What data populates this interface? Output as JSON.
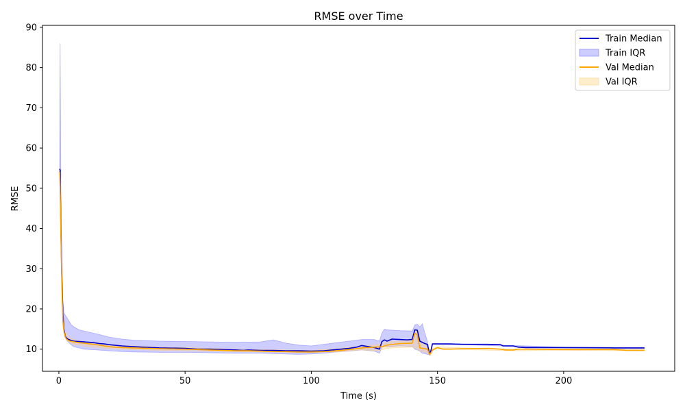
{
  "chart_data": {
    "type": "line",
    "title": "RMSE over Time",
    "xlabel": "Time (s)",
    "ylabel": "RMSE",
    "xlim": [
      -6.5,
      244
    ],
    "ylim": [
      4.5,
      90.5
    ],
    "xticks": [
      0,
      50,
      100,
      150,
      200
    ],
    "yticks": [
      10,
      20,
      30,
      40,
      50,
      60,
      70,
      80,
      90
    ],
    "grid": false,
    "legend_position": "top-right",
    "series": [
      {
        "name": "Train Median",
        "kind": "line",
        "color": "#0000cd",
        "x": [
          0.3,
          0.5,
          0.8,
          1.2,
          1.6,
          2.0,
          2.5,
          3.0,
          3.5,
          4,
          5,
          6,
          8,
          10,
          12,
          14,
          16,
          18,
          20,
          25,
          30,
          40,
          50,
          55,
          60,
          65,
          70,
          73,
          75,
          80,
          85,
          90,
          95,
          100,
          105,
          110,
          115,
          118,
          120,
          125,
          127,
          128,
          129,
          130,
          132,
          135,
          138,
          140,
          141,
          142,
          143,
          145,
          146,
          147,
          148,
          150,
          155,
          160,
          170,
          175,
          176,
          180,
          182,
          185,
          200,
          220,
          232
        ],
        "values": [
          54.8,
          54.5,
          40.0,
          27.0,
          19.0,
          15.0,
          13.2,
          12.8,
          12.5,
          12.4,
          12.1,
          12.0,
          11.9,
          11.8,
          11.7,
          11.6,
          11.4,
          11.3,
          11.1,
          10.8,
          10.6,
          10.3,
          10.2,
          10.0,
          10.0,
          9.9,
          9.8,
          9.7,
          9.8,
          9.7,
          9.7,
          9.6,
          9.6,
          9.5,
          9.6,
          9.9,
          10.2,
          10.5,
          10.9,
          10.4,
          10.0,
          11.9,
          12.3,
          12.0,
          12.5,
          12.4,
          12.3,
          12.4,
          14.8,
          14.7,
          12.0,
          11.4,
          11.2,
          8.6,
          11.3,
          11.3,
          11.3,
          11.2,
          11.2,
          11.1,
          10.8,
          10.8,
          10.5,
          10.4,
          10.4,
          10.3,
          10.3
        ]
      },
      {
        "name": "Train IQR",
        "kind": "band",
        "color": "#7b7bff",
        "x": [
          0.3,
          0.5,
          0.8,
          1.2,
          1.6,
          2,
          3,
          4,
          5,
          6,
          8,
          10,
          15,
          20,
          25,
          30,
          40,
          50,
          60,
          70,
          80,
          85,
          90,
          95,
          100,
          105,
          110,
          115,
          120,
          125,
          127,
          128,
          129,
          130,
          135,
          140,
          141,
          142,
          143,
          144,
          145,
          146,
          147,
          148,
          150,
          160,
          180,
          200,
          232
        ],
        "lower": [
          52.0,
          50.0,
          36.0,
          24.0,
          17.0,
          14.0,
          12.3,
          11.6,
          11.0,
          10.6,
          10.3,
          10.0,
          9.8,
          9.6,
          9.4,
          9.3,
          9.2,
          9.2,
          9.1,
          9.0,
          9.0,
          8.9,
          8.8,
          8.7,
          8.8,
          9.0,
          9.3,
          9.5,
          9.8,
          9.5,
          9.0,
          10.5,
          10.8,
          10.6,
          10.8,
          10.7,
          10.0,
          9.8,
          9.5,
          9.0,
          8.9,
          8.7,
          8.6,
          11.2,
          11.2,
          11.1,
          10.7,
          10.3,
          10.2
        ],
        "upper": [
          57.0,
          86.0,
          48.0,
          32.0,
          22.0,
          19.0,
          18.0,
          17.0,
          16.0,
          15.5,
          14.8,
          14.5,
          13.8,
          13.0,
          12.5,
          12.2,
          12.0,
          11.9,
          11.8,
          11.7,
          11.8,
          12.3,
          11.5,
          11.0,
          10.8,
          11.2,
          11.6,
          12.0,
          12.4,
          12.4,
          12.0,
          14.0,
          15.0,
          14.8,
          14.6,
          14.5,
          16.0,
          16.2,
          15.5,
          16.3,
          14.0,
          12.0,
          8.6,
          11.4,
          11.4,
          11.3,
          10.9,
          10.5,
          10.4
        ]
      },
      {
        "name": "Val Median",
        "kind": "line",
        "color": "#ffa500",
        "x": [
          0.3,
          0.5,
          0.8,
          1.2,
          1.6,
          2.0,
          2.5,
          3.0,
          3.5,
          4,
          5,
          6,
          8,
          10,
          12,
          14,
          16,
          18,
          20,
          25,
          30,
          40,
          50,
          55,
          60,
          65,
          70,
          75,
          80,
          85,
          90,
          95,
          100,
          105,
          110,
          115,
          120,
          125,
          128,
          130,
          135,
          140,
          141,
          142,
          143,
          145,
          146,
          147,
          148,
          150,
          152,
          155,
          160,
          170,
          175,
          177,
          180,
          182,
          185,
          200,
          220,
          225,
          232
        ],
        "values": [
          54.0,
          50.0,
          38.0,
          25.0,
          17.0,
          14.5,
          13.0,
          12.5,
          12.3,
          12.1,
          11.9,
          11.8,
          11.6,
          11.5,
          11.3,
          11.2,
          11.0,
          10.8,
          10.6,
          10.4,
          10.3,
          10.1,
          10.0,
          9.9,
          9.8,
          9.7,
          9.6,
          9.6,
          9.5,
          9.4,
          9.4,
          9.3,
          9.3,
          9.4,
          9.6,
          9.9,
          10.3,
          10.5,
          10.6,
          11.0,
          11.4,
          11.5,
          14.0,
          13.5,
          10.3,
          10.1,
          10.0,
          8.6,
          9.8,
          10.4,
          10.0,
          10.0,
          10.1,
          10.2,
          10.0,
          9.8,
          9.8,
          10.0,
          10.0,
          9.9,
          9.9,
          9.7,
          9.7
        ]
      },
      {
        "name": "Val IQR",
        "kind": "band",
        "color": "#ffd27f",
        "x": [
          0.3,
          0.5,
          0.8,
          1.2,
          1.6,
          2,
          3,
          4,
          5,
          6,
          8,
          10,
          15,
          20,
          25,
          30,
          40,
          50,
          60,
          70,
          80,
          90,
          100,
          110,
          120,
          125,
          128,
          130,
          135,
          140,
          141,
          142,
          143,
          145,
          146,
          147,
          148,
          150,
          160,
          180,
          200,
          232
        ],
        "lower": [
          53.0,
          48.0,
          36.0,
          23.0,
          16.0,
          13.8,
          12.3,
          11.8,
          11.4,
          11.2,
          11.0,
          10.8,
          10.4,
          10.2,
          10.0,
          9.9,
          9.7,
          9.6,
          9.5,
          9.4,
          9.3,
          9.2,
          9.2,
          9.3,
          9.8,
          9.6,
          9.8,
          10.2,
          10.4,
          10.5,
          10.2,
          10.0,
          9.5,
          9.3,
          9.0,
          8.6,
          9.6,
          10.2,
          9.9,
          9.6,
          9.7,
          9.6
        ],
        "upper": [
          55.0,
          52.0,
          40.0,
          27.0,
          18.0,
          15.2,
          13.7,
          13.0,
          12.6,
          12.3,
          12.1,
          11.9,
          11.6,
          11.2,
          10.9,
          10.8,
          10.5,
          10.4,
          10.2,
          10.0,
          9.9,
          9.8,
          9.7,
          10.1,
          10.8,
          11.0,
          11.4,
          11.8,
          12.0,
          12.1,
          15.0,
          14.5,
          12.5,
          11.0,
          10.5,
          8.6,
          10.1,
          10.6,
          10.3,
          10.0,
          10.1,
          10.0
        ]
      }
    ]
  }
}
